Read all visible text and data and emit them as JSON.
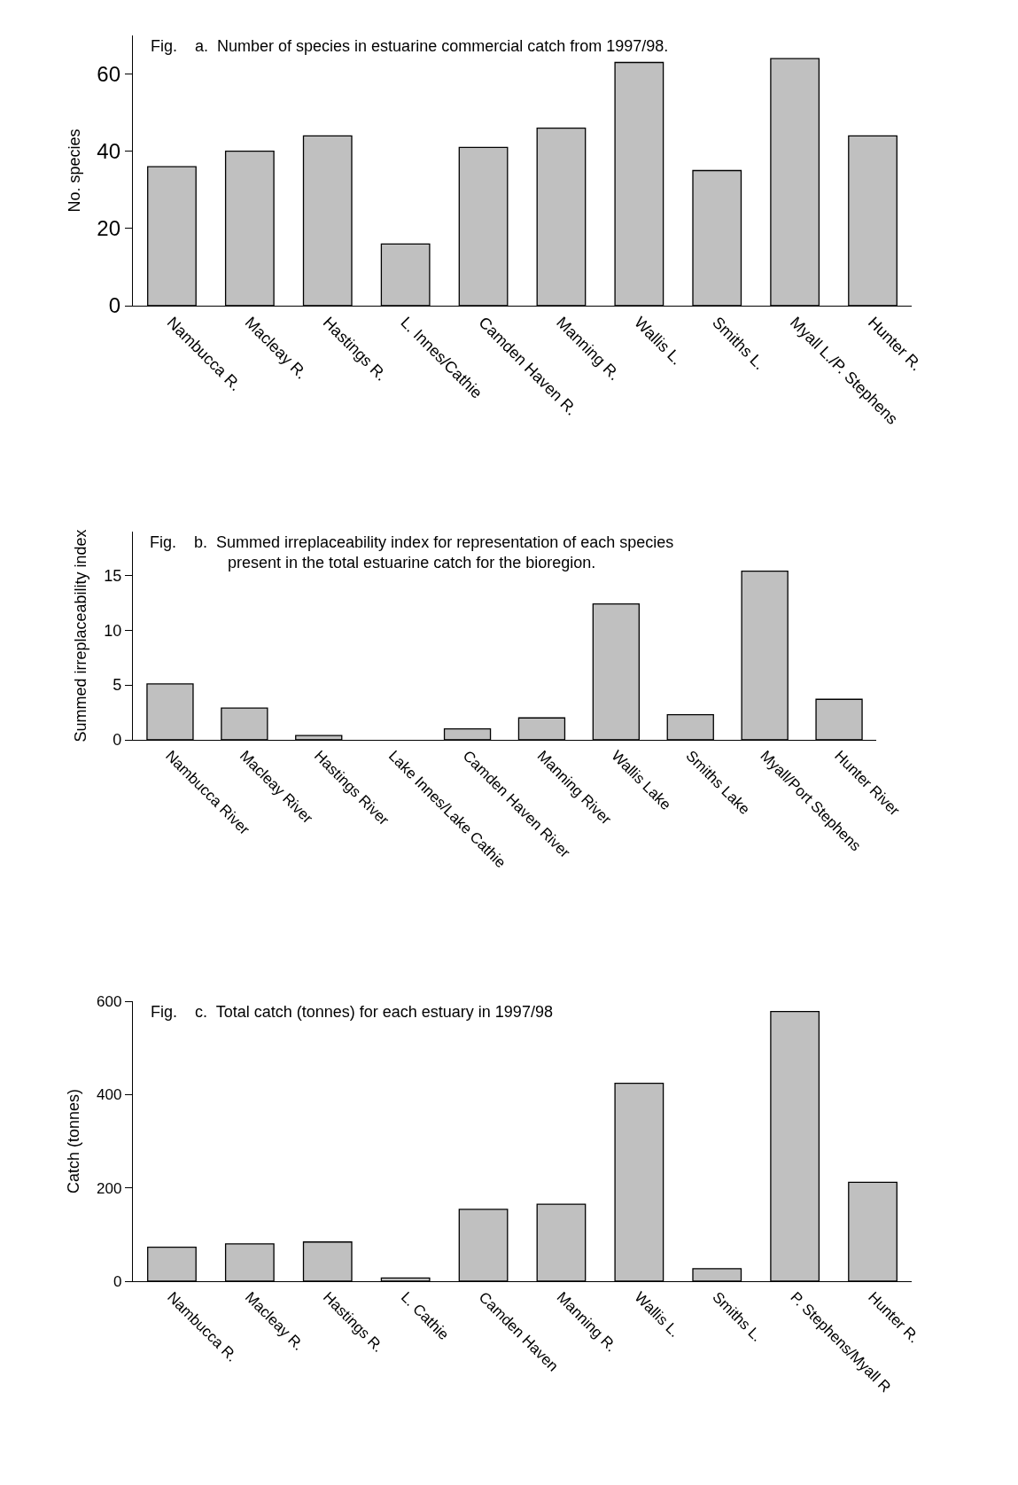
{
  "chart_data": [
    {
      "type": "bar",
      "title": "Fig.    a.  Number of species in estuarine commercial catch from 1997/98.",
      "ylabel": "No. species",
      "categories": [
        "Nambucca R.",
        "Macleay R.",
        "Hastings R.",
        "L. Innes/Cathie",
        "Camden Haven R.",
        "Manning R.",
        "Wallis L.",
        "Smiths L.",
        "Myall L./P. Stephens",
        "Hunter R."
      ],
      "values": [
        36,
        40,
        44,
        16,
        41,
        46,
        63,
        35,
        64,
        44
      ],
      "color": "#c0c0c0",
      "ylim": [
        0,
        70
      ],
      "yticks": [
        0,
        20,
        40,
        60
      ]
    },
    {
      "type": "bar",
      "title": "Fig.    b.  Summed irreplaceability index for representation of each species\npresent in the total estuarine catch for the bioregion.",
      "ylabel": "Summed irreplaceability index",
      "categories": [
        "Nambucca River",
        "Macleay River",
        "Hastings River",
        "Lake Innes/Lake Cathie",
        "Camden Haven River",
        "Manning River",
        "Wallis Lake",
        "Smiths Lake",
        "Myall/Port Stephens",
        "Hunter River"
      ],
      "values": [
        5.1,
        2.9,
        0.4,
        0,
        1.0,
        2.0,
        12.4,
        2.3,
        15.4,
        3.7
      ],
      "color": "#c0c0c0",
      "ylim": [
        0,
        19
      ],
      "yticks": [
        0,
        5,
        10,
        15
      ]
    },
    {
      "type": "bar",
      "title": "Fig.    c.  Total catch (tonnes) for each estuary in 1997/98",
      "ylabel": "Catch (tonnes)",
      "categories": [
        "Nambucca R.",
        "Macleay R.",
        "Hastings R.",
        "L. Cathie",
        "Camden Haven",
        "Manning R.",
        "Wallis L.",
        "Smiths L.",
        "P. Stephens/Myall R",
        "Hunter R."
      ],
      "values": [
        73,
        80,
        84,
        7,
        154,
        165,
        424,
        27,
        578,
        212
      ],
      "color": "#c0c0c0",
      "ylim": [
        0,
        600
      ],
      "yticks": [
        0,
        200,
        400,
        600
      ]
    }
  ]
}
